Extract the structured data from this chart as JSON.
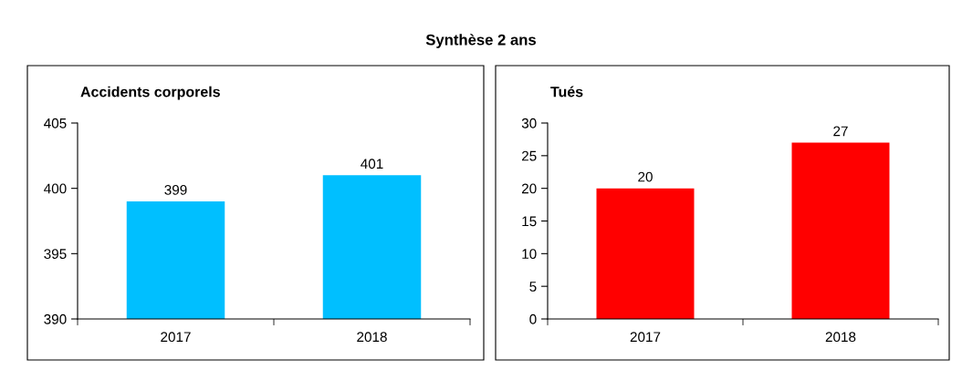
{
  "chart_data": [
    {
      "type": "other",
      "title": "Synthèse 2 ans"
    },
    {
      "type": "bar",
      "title": "Accidents corporels",
      "categories": [
        "2017",
        "2018"
      ],
      "values": [
        399,
        401
      ],
      "color": "#00bfff",
      "ylim": [
        390,
        405
      ],
      "yticks": [
        390,
        395,
        400,
        405
      ],
      "data_labels": true,
      "grid": false,
      "legend": false
    },
    {
      "type": "bar",
      "title": "Tués",
      "categories": [
        "2017",
        "2018"
      ],
      "values": [
        20,
        27
      ],
      "color": "#ff0000",
      "ylim": [
        0,
        30
      ],
      "yticks": [
        0,
        5,
        10,
        15,
        20,
        25,
        30
      ],
      "data_labels": true,
      "grid": false,
      "legend": false
    }
  ]
}
